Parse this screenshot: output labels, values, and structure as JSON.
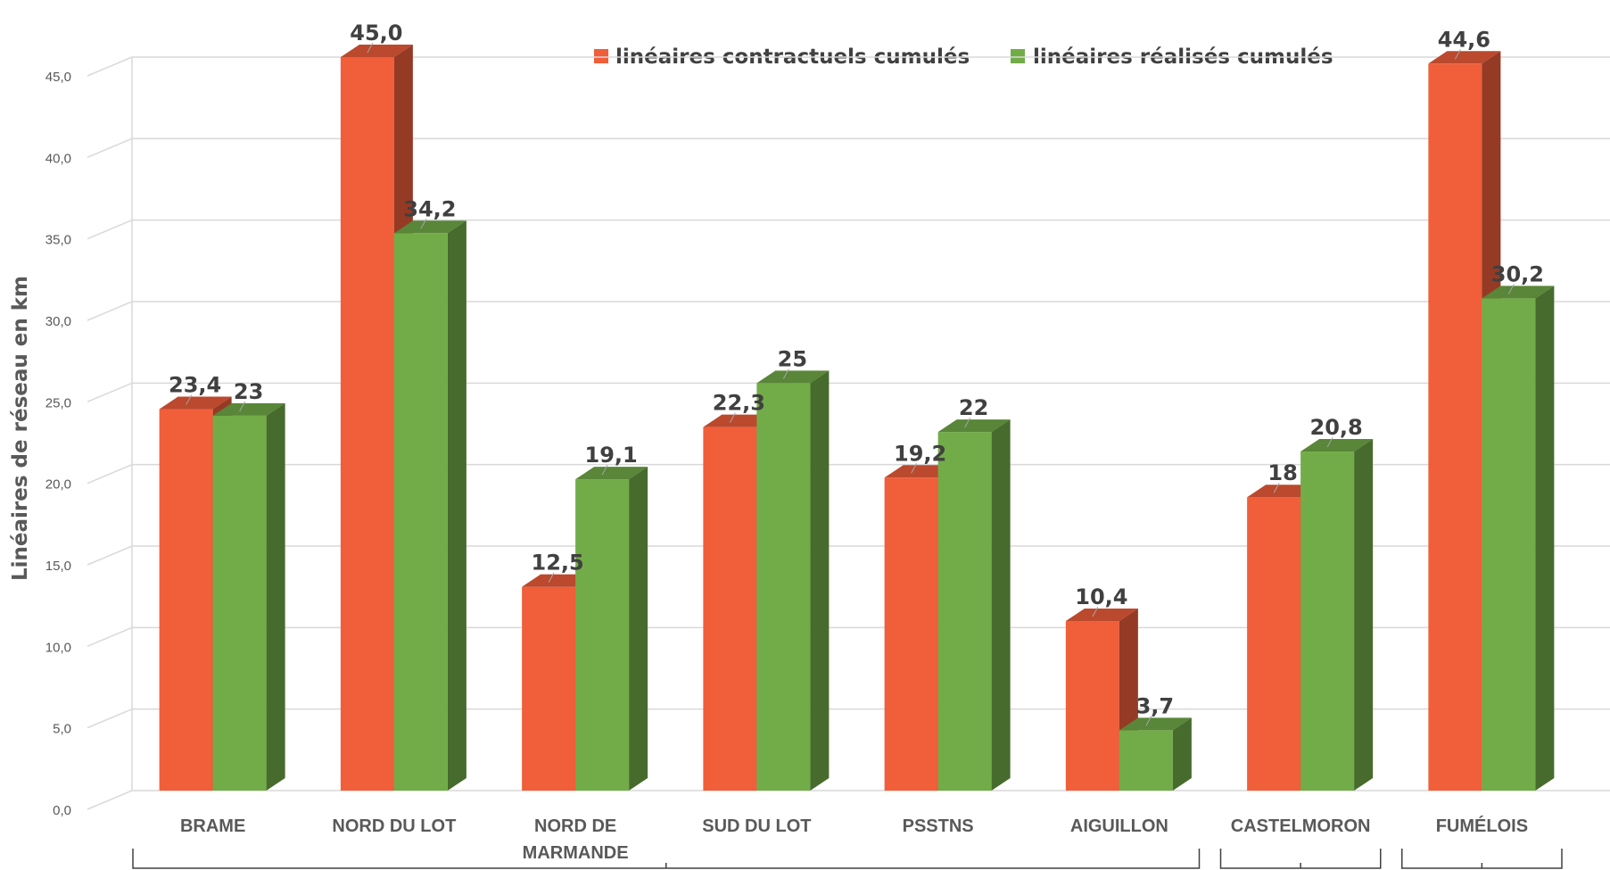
{
  "chart_data": {
    "type": "bar",
    "ylabel": "Linéaires de réseau en km",
    "ylim": [
      0,
      45
    ],
    "yticks": [
      "0,0",
      "5,0",
      "10,0",
      "15,0",
      "20,0",
      "25,0",
      "30,0",
      "35,0",
      "40,0",
      "45,0"
    ],
    "grid": true,
    "legend_position": "top",
    "categories": [
      "BRAME",
      "NORD DU LOT",
      "NORD DE MARMANDE",
      "SUD DU LOT",
      "PSSTNS",
      "AIGUILLON",
      "CASTELMORON",
      "FUMÉLOIS"
    ],
    "series": [
      {
        "name": "linéaires contractuels cumulés",
        "color": "#F05E3A",
        "values": [
          23.4,
          45.0,
          12.5,
          22.3,
          19.2,
          10.4,
          18,
          44.6
        ],
        "labels": [
          "23,4",
          "45,0",
          "12,5",
          "22,3",
          "19,2",
          "10,4",
          "18",
          "44,6"
        ]
      },
      {
        "name": "linéaires réalisés cumulés",
        "color": "#72AC48",
        "values": [
          23,
          34.2,
          19.1,
          25,
          22,
          3.7,
          20.8,
          30.2
        ],
        "labels": [
          "23",
          "34,2",
          "19,1",
          "25",
          "22",
          "3,7",
          "20,8",
          "30,2"
        ]
      }
    ],
    "groups": [
      {
        "from": 0,
        "to": 5
      },
      {
        "from": 6,
        "to": 6
      },
      {
        "from": 7,
        "to": 7
      }
    ]
  }
}
